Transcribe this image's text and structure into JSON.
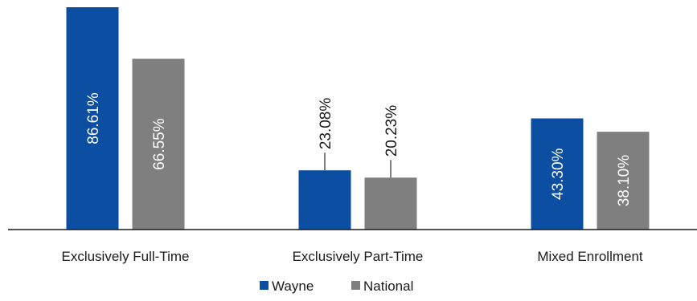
{
  "chart_data": {
    "type": "bar",
    "categories": [
      "Exclusively Full-Time",
      "Exclusively Part-Time",
      "Mixed Enrollment"
    ],
    "series": [
      {
        "name": "Wayne",
        "color": "#0b4ea2",
        "values": [
          86.61,
          23.08,
          43.3
        ],
        "labels": [
          "86.61%",
          "23.08%",
          "43.30%"
        ]
      },
      {
        "name": "National",
        "color": "#7f7f7f",
        "values": [
          66.55,
          20.23,
          38.1
        ],
        "labels": [
          "66.55%",
          "20.23%",
          "38.10%"
        ]
      }
    ],
    "title": "",
    "xlabel": "",
    "ylabel": "",
    "ylim": [
      0,
      86.61
    ],
    "grid": false,
    "legend_position": "bottom",
    "data_label_rotation": "vertical"
  }
}
